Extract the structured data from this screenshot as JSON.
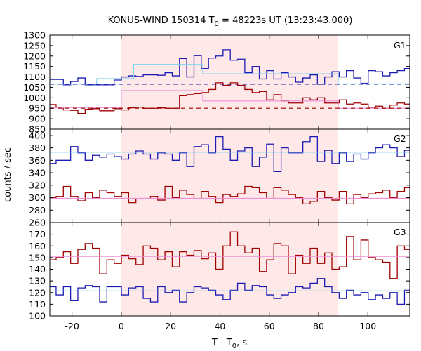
{
  "chart_data": {
    "type": "line",
    "title": "KONUS-WIND 150314 T",
    "title_sub": "0",
    "title_rest": " = 48223s UT (13:23:43.000)",
    "xlabel": "T - T",
    "xlabel_sub": "0",
    "xlabel_rest": ", s",
    "ylabel": "counts / sec",
    "xlim": [
      -29,
      117
    ],
    "xticks": [
      -20,
      0,
      20,
      40,
      60,
      80,
      100
    ],
    "highlight_interval": [
      0,
      87.8
    ],
    "colors": {
      "blue": "#1c1cb4",
      "red": "#a00000",
      "cyan": "#7fd4ee",
      "pink": "#ee8fd8",
      "shade": "#ffe8e8"
    },
    "panels": [
      {
        "label": "G1",
        "ylim": [
          850,
          1300
        ],
        "yticks": [
          850,
          900,
          950,
          1000,
          1050,
          1100,
          1150,
          1200,
          1250,
          1300
        ],
        "bin_width": 2.944,
        "x_start": -29.4,
        "series": [
          {
            "color": "blue",
            "values": [
              1088,
              1088,
              1062,
              1078,
              1095,
              1062,
              1062,
              1062,
              1062,
              1085,
              1100,
              1105,
              1102,
              1110,
              1110,
              1108,
              1120,
              1105,
              1188,
              1100,
              1202,
              1140,
              1190,
              1200,
              1230,
              1180,
              1185,
              1120,
              1150,
              1090,
              1130,
              1090,
              1120,
              1100,
              1075,
              1095,
              1110,
              1065,
              1100,
              1125,
              1100,
              1130,
              1095,
              1070,
              1130,
              1125,
              1105,
              1120,
              1130,
              1140,
              1130,
              1150,
              1125,
              1135,
              1150,
              1080,
              1075,
              1075,
              1070,
              1065,
              1080,
              1070,
              1070,
              1065,
              1065,
              1070,
              1070,
              1060,
              1115
            ]
          },
          {
            "color": "red",
            "values": [
              968,
              955,
              942,
              940,
              925,
              945,
              948,
              938,
              938,
              948,
              942,
              952,
              955,
              950,
              950,
              952,
              950,
              950,
              1010,
              1015,
              1020,
              1025,
              1040,
              1072,
              1060,
              1072,
              1060,
              1040,
              1025,
              1030,
              990,
              1015,
              985,
              975,
              975,
              1000,
              990,
              1000,
              975,
              975,
              990,
              970,
              975,
              970,
              955,
              960,
              950,
              965,
              975,
              970,
              955,
              990,
              985,
              965,
              970,
              945,
              940,
              945,
              955,
              950,
              958,
              955,
              938,
              945,
              960,
              950,
              958,
              940,
              948
            ]
          },
          {
            "color": "cyan",
            "style": "step-segments",
            "segments": [
              [
                -29,
                1065
              ],
              [
                -10,
                1092
              ],
              [
                5,
                1160
              ],
              [
                33,
                1115
              ],
              [
                88,
                1067
              ]
            ]
          },
          {
            "color": "pink",
            "style": "step-segments",
            "segments": [
              [
                -29,
                952
              ],
              [
                0,
                1035
              ],
              [
                33,
                985
              ],
              [
                88,
                950
              ]
            ]
          },
          {
            "color": "blue",
            "style": "dashed",
            "value": 1065
          },
          {
            "color": "red",
            "style": "dashed",
            "value": 950
          }
        ]
      },
      {
        "label": "G2",
        "ylim": [
          260,
          410
        ],
        "yticks": [
          260,
          280,
          300,
          320,
          340,
          360,
          380,
          400
        ],
        "bin_width": 2.944,
        "x_start": -29.4,
        "series": [
          {
            "color": "blue",
            "values": [
              355,
              360,
              360,
              382,
              372,
              360,
              368,
              365,
              370,
              366,
              362,
              370,
              375,
              370,
              362,
              372,
              370,
              360,
              372,
              350,
              382,
              385,
              372,
              398,
              378,
              360,
              375,
              380,
              350,
              365,
              386,
              342,
              380,
              372,
              372,
              390,
              398,
              358,
              376,
              355,
              372,
              358,
              370,
              362,
              372,
              380,
              385,
              380,
              366,
              376,
              380,
              352,
              362,
              385,
              380,
              352,
              378,
              376,
              388,
              374,
              376,
              362,
              385,
              360,
              380,
              372,
              375,
              356,
              380
            ]
          },
          {
            "color": "red",
            "values": [
              300,
              302,
              318,
              302,
              295,
              308,
              300,
              312,
              308,
              302,
              308,
              292,
              298,
              298,
              302,
              296,
              318,
              300,
              312,
              305,
              298,
              310,
              302,
              292,
              305,
              302,
              306,
              318,
              316,
              308,
              298,
              316,
              312,
              305,
              300,
              290,
              294,
              310,
              300,
              296,
              310,
              290,
              305,
              300,
              306,
              308,
              312,
              300,
              310,
              316,
              300,
              298,
              290,
              302,
              298,
              292,
              302,
              312,
              300,
              290,
              298,
              302,
              312,
              300,
              304,
              294,
              296,
              282,
              298
            ]
          },
          {
            "color": "cyan",
            "style": "flat",
            "value": 373
          },
          {
            "color": "pink",
            "style": "flat",
            "value": 299
          }
        ]
      },
      {
        "label": "G3",
        "ylim": [
          100,
          180
        ],
        "yticks": [
          100,
          110,
          120,
          130,
          140,
          150,
          160,
          170
        ],
        "bin_width": 2.944,
        "x_start": -29.4,
        "series": [
          {
            "color": "blue",
            "values": [
              125,
              118,
              125,
              113,
              124,
              126,
              125,
              112,
              125,
              125,
              118,
              124,
              125,
              115,
              112,
              125,
              120,
              122,
              112,
              120,
              125,
              124,
              122,
              118,
              114,
              122,
              128,
              122,
              126,
              125,
              118,
              115,
              118,
              120,
              125,
              124,
              128,
              132,
              125,
              120,
              115,
              122,
              118,
              120,
              114,
              118,
              115,
              120,
              110,
              122,
              125,
              115,
              113,
              118,
              120,
              115,
              128,
              118,
              125,
              120,
              128,
              118,
              112,
              118,
              115,
              114,
              128,
              122,
              128
            ]
          },
          {
            "color": "red",
            "values": [
              148,
              150,
              155,
              145,
              157,
              162,
              158,
              136,
              148,
              145,
              152,
              149,
              144,
              160,
              158,
              148,
              155,
              142,
              155,
              152,
              156,
              149,
              154,
              140,
              160,
              172,
              160,
              154,
              158,
              138,
              148,
              162,
              160,
              136,
              152,
              145,
              158,
              145,
              154,
              140,
              142,
              168,
              148,
              165,
              150,
              148,
              146,
              132,
              160,
              157,
              158,
              138,
              158,
              152,
              130,
              148,
              158,
              160,
              150,
              145,
              150,
              140,
              156,
              146,
              138,
              162,
              134,
              155,
              152
            ]
          },
          {
            "color": "cyan",
            "style": "flat",
            "value": 121.5
          },
          {
            "color": "pink",
            "style": "flat",
            "value": 151
          }
        ]
      }
    ]
  }
}
